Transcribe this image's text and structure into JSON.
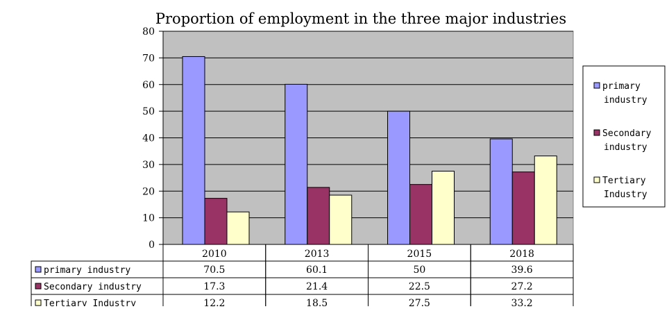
{
  "chart_data": {
    "type": "bar",
    "title": "Proportion of employment in the three major industries",
    "categories": [
      "2010",
      "2013",
      "2015",
      "2018"
    ],
    "series": [
      {
        "name": "primary industry",
        "legend_lines": [
          "primary",
          "industry"
        ],
        "values": [
          70.5,
          60.1,
          50,
          39.6
        ],
        "labels": [
          "70.5",
          "60.1",
          "50",
          "39.6"
        ],
        "color": "#9999ff"
      },
      {
        "name": "Secondary industry",
        "legend_lines": [
          "Secondary",
          "industry"
        ],
        "values": [
          17.3,
          21.4,
          22.5,
          27.2
        ],
        "labels": [
          "17.3",
          "21.4",
          "22.5",
          "27.2"
        ],
        "color": "#993366"
      },
      {
        "name": "Tertiary Industry",
        "legend_lines": [
          "Tertiary",
          "Industry"
        ],
        "values": [
          12.2,
          18.5,
          27.5,
          33.2
        ],
        "labels": [
          "12.2",
          "18.5",
          "27.5",
          "33.2"
        ],
        "color": "#ffffcc"
      }
    ],
    "ylim": [
      0,
      80
    ],
    "yticks": [
      0,
      10,
      20,
      30,
      40,
      50,
      60,
      70,
      80
    ],
    "grid": true,
    "plot_background": "#c0c0c0",
    "legend_position": "right",
    "data_table": true
  }
}
